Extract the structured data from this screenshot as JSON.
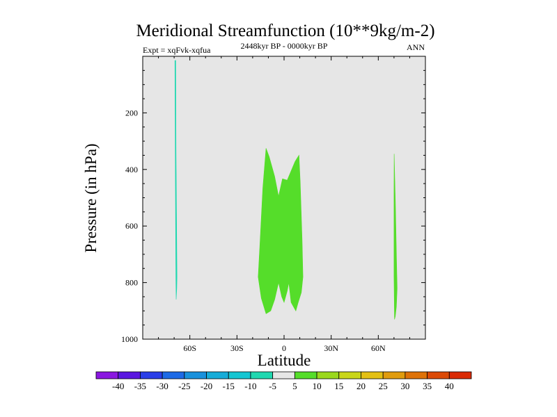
{
  "chart_data": {
    "type": "contour",
    "title": "Meridional Streamfunction (10**9kg/m-2)",
    "subtitle_left": "Expt = xqFvk-xqfua",
    "subtitle_center": "2448kyr BP - 0000kyr BP",
    "subtitle_right": "ANN",
    "xlabel": "Latitude",
    "ylabel": "Pressure (in hPa)",
    "xlim": [
      -90,
      90
    ],
    "ylim": [
      0,
      1000
    ],
    "y_inverted": true,
    "xticks": [
      {
        "value": -60,
        "label": "60S"
      },
      {
        "value": -30,
        "label": "30S"
      },
      {
        "value": 0,
        "label": "0"
      },
      {
        "value": 30,
        "label": "30N"
      },
      {
        "value": 60,
        "label": "60N"
      }
    ],
    "yticks": [
      {
        "value": 200,
        "label": "200"
      },
      {
        "value": 400,
        "label": "400"
      },
      {
        "value": 600,
        "label": "600"
      },
      {
        "value": 800,
        "label": "800"
      },
      {
        "value": 1000,
        "label": "1000"
      }
    ],
    "background_color": "#e6e6e6",
    "regions": [
      {
        "name": "southern-negative-band",
        "range": "-10 to -5",
        "color": "#20d8b0",
        "polygon": [
          [
            -69.5,
            15
          ],
          [
            -69.0,
            15
          ],
          [
            -68.8,
            330
          ],
          [
            -68.3,
            680
          ],
          [
            -68.2,
            780
          ],
          [
            -68.3,
            820
          ],
          [
            -68.7,
            860
          ],
          [
            -68.9,
            790
          ],
          [
            -69.3,
            330
          ]
        ]
      },
      {
        "name": "equatorial-positive-region",
        "range": "5 to 10",
        "color": "#55dd2a",
        "polygon": [
          [
            -11.5,
            325
          ],
          [
            -9.5,
            355
          ],
          [
            -6.0,
            425
          ],
          [
            -3.5,
            495
          ],
          [
            -1.0,
            433
          ],
          [
            2.0,
            438
          ],
          [
            7.0,
            372
          ],
          [
            9.5,
            350
          ],
          [
            10.3,
            445
          ],
          [
            11.5,
            650
          ],
          [
            12.0,
            780
          ],
          [
            11.0,
            835
          ],
          [
            9.0,
            870
          ],
          [
            7.5,
            900
          ],
          [
            4.5,
            870
          ],
          [
            3.0,
            800
          ],
          [
            2.0,
            830
          ],
          [
            0.0,
            870
          ],
          [
            -1.5,
            850
          ],
          [
            -3.5,
            800
          ],
          [
            -6.0,
            860
          ],
          [
            -8.5,
            900
          ],
          [
            -11.5,
            910
          ],
          [
            -14.5,
            855
          ],
          [
            -16.5,
            780
          ],
          [
            -15.5,
            680
          ],
          [
            -13.5,
            465
          ]
        ]
      },
      {
        "name": "northern-positive-band",
        "range": "5 to 10",
        "color": "#55dd2a",
        "polygon": [
          [
            70.1,
            345
          ],
          [
            70.9,
            520
          ],
          [
            71.6,
            720
          ],
          [
            72.0,
            820
          ],
          [
            71.5,
            885
          ],
          [
            70.8,
            920
          ],
          [
            70.3,
            930
          ],
          [
            70.0,
            780
          ],
          [
            70.0,
            480
          ]
        ]
      }
    ],
    "colorbar": {
      "labels": [
        "-40",
        "-35",
        "-30",
        "-25",
        "-20",
        "-15",
        "-10",
        "-5",
        "5",
        "10",
        "15",
        "20",
        "25",
        "30",
        "35",
        "40"
      ],
      "colors": [
        "#8a17e0",
        "#5a17e0",
        "#2a3ee8",
        "#1d6ae6",
        "#1991dc",
        "#16acd8",
        "#15c6d2",
        "#20d8b0",
        "#e6e6e6",
        "#55dd2a",
        "#9ad81c",
        "#c9d619",
        "#e3c014",
        "#e09c0e",
        "#de7208",
        "#dc4a06",
        "#da2a04"
      ]
    }
  }
}
